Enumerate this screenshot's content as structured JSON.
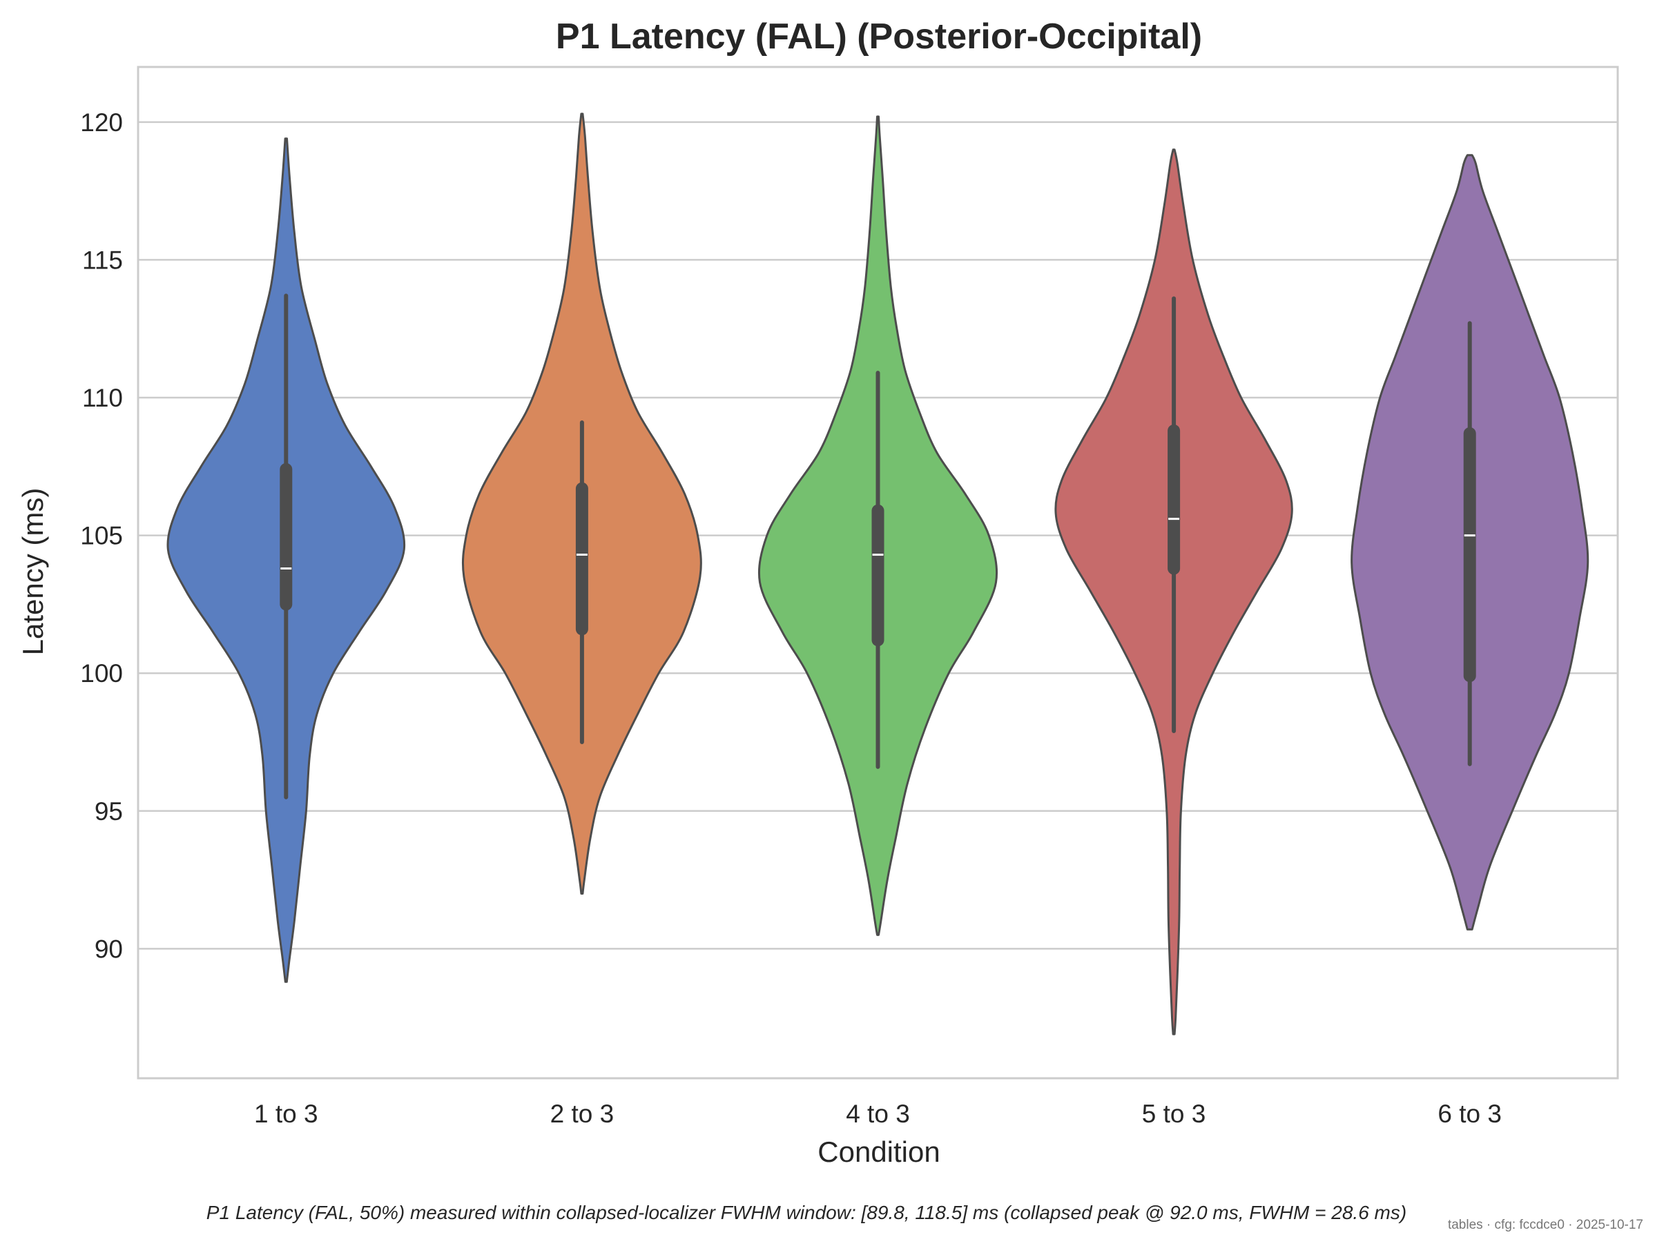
{
  "chart_data": {
    "type": "violin",
    "title": "P1 Latency (FAL) (Posterior-Occipital)",
    "xlabel": "Condition",
    "ylabel": "Latency (ms)",
    "categories": [
      "1 to 3",
      "2 to 3",
      "4 to 3",
      "5 to 3",
      "6 to 3"
    ],
    "ylim": [
      85.3,
      122.0
    ],
    "yticks": [
      90,
      95,
      100,
      105,
      110,
      115,
      120
    ],
    "grid": "horizontal",
    "colors": [
      "#5a7ec0",
      "#d8885c",
      "#75c06f",
      "#c66b6b",
      "#9375ac"
    ],
    "outline_color": "#4d4d4d",
    "series": [
      {
        "category": "1 to 3",
        "color": "#5a7ec0",
        "median": 103.8,
        "q1": 102.5,
        "q3": 107.4,
        "whisker_low": 95.5,
        "whisker_high": 113.7,
        "density": [
          [
            88.8,
            0.006
          ],
          [
            89.5,
            0.025
          ],
          [
            91.0,
            0.07
          ],
          [
            93.0,
            0.12
          ],
          [
            95.0,
            0.17
          ],
          [
            97.0,
            0.2
          ],
          [
            98.5,
            0.26
          ],
          [
            100.0,
            0.4
          ],
          [
            101.5,
            0.62
          ],
          [
            103.0,
            0.85
          ],
          [
            104.5,
            1.0
          ],
          [
            106.0,
            0.92
          ],
          [
            107.5,
            0.72
          ],
          [
            109.0,
            0.5
          ],
          [
            110.5,
            0.35
          ],
          [
            112.0,
            0.25
          ],
          [
            114.0,
            0.13
          ],
          [
            116.0,
            0.07
          ],
          [
            118.0,
            0.03
          ],
          [
            119.4,
            0.007
          ]
        ]
      },
      {
        "category": "2 to 3",
        "color": "#d8885c",
        "median": 104.3,
        "q1": 101.6,
        "q3": 106.7,
        "whisker_low": 97.5,
        "whisker_high": 109.1,
        "density": [
          [
            92.0,
            0.006
          ],
          [
            92.5,
            0.02
          ],
          [
            94.0,
            0.07
          ],
          [
            95.5,
            0.15
          ],
          [
            97.0,
            0.3
          ],
          [
            98.5,
            0.47
          ],
          [
            100.0,
            0.65
          ],
          [
            101.5,
            0.86
          ],
          [
            103.5,
            1.0
          ],
          [
            105.0,
            0.98
          ],
          [
            106.5,
            0.87
          ],
          [
            108.0,
            0.68
          ],
          [
            109.5,
            0.47
          ],
          [
            111.0,
            0.33
          ],
          [
            112.5,
            0.23
          ],
          [
            114.0,
            0.15
          ],
          [
            116.0,
            0.09
          ],
          [
            118.0,
            0.05
          ],
          [
            119.5,
            0.025
          ],
          [
            120.3,
            0.006
          ]
        ]
      },
      {
        "category": "4 to 3",
        "color": "#75c06f",
        "median": 104.3,
        "q1": 101.2,
        "q3": 105.9,
        "whisker_low": 96.6,
        "whisker_high": 110.9,
        "density": [
          [
            90.5,
            0.006
          ],
          [
            91.0,
            0.025
          ],
          [
            92.5,
            0.08
          ],
          [
            94.0,
            0.15
          ],
          [
            96.0,
            0.25
          ],
          [
            98.0,
            0.4
          ],
          [
            100.0,
            0.6
          ],
          [
            101.5,
            0.81
          ],
          [
            103.3,
            1.0
          ],
          [
            105.0,
            0.94
          ],
          [
            106.5,
            0.74
          ],
          [
            108.0,
            0.5
          ],
          [
            109.5,
            0.35
          ],
          [
            111.0,
            0.23
          ],
          [
            112.5,
            0.16
          ],
          [
            114.0,
            0.11
          ],
          [
            116.0,
            0.07
          ],
          [
            118.0,
            0.04
          ],
          [
            119.5,
            0.015
          ],
          [
            120.2,
            0.006
          ]
        ]
      },
      {
        "category": "5 to 3",
        "color": "#c66b6b",
        "median": 105.6,
        "q1": 103.8,
        "q3": 108.8,
        "whisker_low": 97.9,
        "whisker_high": 113.6,
        "density": [
          [
            86.9,
            0.006
          ],
          [
            87.5,
            0.015
          ],
          [
            89.0,
            0.03
          ],
          [
            91.0,
            0.045
          ],
          [
            93.0,
            0.05
          ],
          [
            95.0,
            0.06
          ],
          [
            97.0,
            0.1
          ],
          [
            98.5,
            0.18
          ],
          [
            100.0,
            0.33
          ],
          [
            101.5,
            0.51
          ],
          [
            103.0,
            0.71
          ],
          [
            104.5,
            0.91
          ],
          [
            105.8,
            1.0
          ],
          [
            107.0,
            0.95
          ],
          [
            108.5,
            0.77
          ],
          [
            110.0,
            0.57
          ],
          [
            111.5,
            0.42
          ],
          [
            113.0,
            0.29
          ],
          [
            115.0,
            0.16
          ],
          [
            117.0,
            0.08
          ],
          [
            118.5,
            0.03
          ],
          [
            119.0,
            0.006
          ]
        ]
      },
      {
        "category": "6 to 3",
        "color": "#9375ac",
        "median": 105.0,
        "q1": 99.9,
        "q3": 108.7,
        "whisker_low": 96.7,
        "whisker_high": 112.7,
        "density": [
          [
            90.7,
            0.02
          ],
          [
            91.5,
            0.07
          ],
          [
            93.0,
            0.17
          ],
          [
            95.0,
            0.36
          ],
          [
            97.0,
            0.56
          ],
          [
            98.5,
            0.72
          ],
          [
            100.0,
            0.84
          ],
          [
            102.0,
            0.93
          ],
          [
            104.0,
            1.0
          ],
          [
            106.0,
            0.95
          ],
          [
            108.0,
            0.87
          ],
          [
            110.0,
            0.76
          ],
          [
            111.5,
            0.63
          ],
          [
            113.0,
            0.5
          ],
          [
            114.5,
            0.37
          ],
          [
            116.0,
            0.24
          ],
          [
            117.5,
            0.11
          ],
          [
            118.5,
            0.05
          ],
          [
            118.8,
            0.02
          ]
        ]
      }
    ],
    "caption": "P1 Latency (FAL, 50%) measured within collapsed-localizer FWHM window: [89.8, 118.5] ms (collapsed peak @ 92.0 ms, FWHM = 28.6 ms)",
    "footer": "tables · cfg: fccdce0 · 2025-10-17"
  }
}
